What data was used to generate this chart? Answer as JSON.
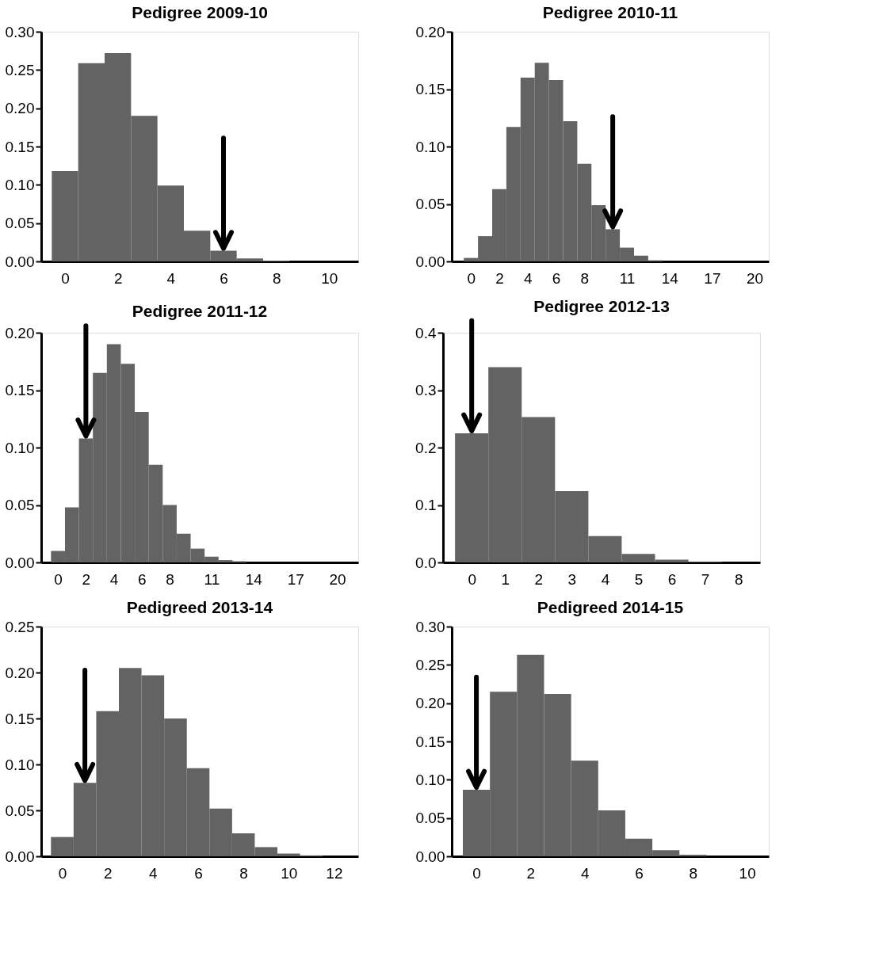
{
  "chart_data": [
    {
      "type": "histogram",
      "title": "Pedigree 2009-10",
      "bins": [
        -0.5,
        0.5,
        1.5,
        2.5,
        3.5,
        4.5,
        5.5,
        6.5,
        7.5,
        8.5
      ],
      "values": [
        0.118,
        0.259,
        0.272,
        0.19,
        0.099,
        0.04,
        0.014,
        0.004,
        0.001
      ],
      "color": "#636363",
      "xlim": [
        -0.9,
        11.1
      ],
      "xticks": [
        0,
        2,
        4,
        6,
        8,
        10
      ],
      "ylim": [
        0,
        0.3
      ],
      "yticks": [
        {
          "value": 0,
          "label": "0.00"
        },
        0.05,
        {
          "value": 0.1,
          "label": "0.10"
        },
        0.15,
        {
          "value": 0.2,
          "label": "0.20"
        },
        0.25,
        {
          "value": 0.3,
          "label": "0.30"
        }
      ],
      "grid": false,
      "ref_lines": [
        {
          "axis": "x",
          "value": 6
        }
      ]
    },
    {
      "type": "histogram",
      "title": "Pedigree 2010-11",
      "bins": [
        -0.5,
        0.5,
        1.5,
        2.5,
        3.5,
        4.5,
        5.5,
        6.5,
        7.5,
        8.5,
        9.5,
        10.5,
        11.5,
        12.5,
        13.5
      ],
      "values": [
        0.003,
        0.022,
        0.063,
        0.117,
        0.16,
        0.173,
        0.158,
        0.122,
        0.085,
        0.049,
        0.028,
        0.012,
        0.005,
        0.001
      ],
      "color": "#636363",
      "xlim": [
        -1.35,
        21
      ],
      "xticks": [
        0,
        2,
        4,
        6,
        8,
        11,
        14,
        17,
        20
      ],
      "ylim": [
        0,
        0.2
      ],
      "yticks": [
        {
          "value": 0,
          "label": "0.00"
        },
        0.05,
        {
          "value": 0.1,
          "label": "0.10"
        },
        0.15,
        {
          "value": 0.2,
          "label": "0.20"
        }
      ],
      "grid": false,
      "ref_lines": [
        {
          "axis": "x",
          "value": 10
        }
      ]
    },
    {
      "type": "histogram",
      "title": "Pedigree 2011-12",
      "bins": [
        -0.5,
        0.5,
        1.5,
        2.5,
        3.5,
        4.5,
        5.5,
        6.5,
        7.5,
        8.5,
        9.5,
        10.5,
        11.5,
        12.5,
        13.5
      ],
      "values": [
        0.01,
        0.048,
        0.108,
        0.165,
        0.19,
        0.173,
        0.131,
        0.085,
        0.05,
        0.025,
        0.012,
        0.005,
        0.002,
        0.001
      ],
      "color": "#636363",
      "xlim": [
        -1.2,
        21.5
      ],
      "xticks": [
        0,
        2,
        4,
        6,
        8,
        11,
        14,
        17,
        20
      ],
      "ylim": [
        0,
        0.2
      ],
      "yticks": [
        {
          "value": 0,
          "label": "0.00"
        },
        0.05,
        {
          "value": 0.1,
          "label": "0.10"
        },
        0.15,
        {
          "value": 0.2,
          "label": "0.20"
        }
      ],
      "grid": false,
      "ref_lines": [
        {
          "axis": "x",
          "value": 2
        }
      ]
    },
    {
      "type": "histogram",
      "title": "Pedigree 2012-13",
      "bins": [
        -0.5,
        0.5,
        1.5,
        2.5,
        3.5,
        4.5,
        5.5,
        6.5,
        7.5
      ],
      "values": [
        0.225,
        0.34,
        0.253,
        0.124,
        0.046,
        0.015,
        0.005,
        0.001
      ],
      "color": "#636363",
      "xlim": [
        -0.86,
        8.65
      ],
      "xticks": [
        0,
        1,
        2,
        3,
        4,
        5,
        6,
        7,
        8
      ],
      "ylim": [
        0,
        0.4
      ],
      "yticks": [
        {
          "value": 0,
          "label": "0.0"
        },
        0.1,
        0.2,
        0.3,
        0.4
      ],
      "grid": false,
      "ref_lines": [
        {
          "axis": "x",
          "value": 0
        }
      ]
    },
    {
      "type": "histogram",
      "title": "Pedigreed 2013-14",
      "bins": [
        -0.5,
        0.5,
        1.5,
        2.5,
        3.5,
        4.5,
        5.5,
        6.5,
        7.5,
        8.5,
        9.5,
        10.5,
        11.5
      ],
      "values": [
        0.021,
        0.08,
        0.158,
        0.205,
        0.197,
        0.15,
        0.096,
        0.052,
        0.025,
        0.01,
        0.003,
        0.001
      ],
      "color": "#636363",
      "xlim": [
        -0.93,
        13.07
      ],
      "xticks": [
        0,
        2,
        4,
        6,
        8,
        10,
        12
      ],
      "ylim": [
        0,
        0.25
      ],
      "yticks": [
        {
          "value": 0,
          "label": "0.00"
        },
        0.05,
        {
          "value": 0.1,
          "label": "0.10"
        },
        0.15,
        {
          "value": 0.2,
          "label": "0.20"
        },
        0.25
      ],
      "grid": false,
      "ref_lines": [
        {
          "axis": "x",
          "value": 1
        }
      ]
    },
    {
      "type": "histogram",
      "title": "Pedigreed 2014-15",
      "bins": [
        -0.5,
        0.5,
        1.5,
        2.5,
        3.5,
        4.5,
        5.5,
        6.5,
        7.5,
        8.5
      ],
      "values": [
        0.087,
        0.215,
        0.263,
        0.212,
        0.125,
        0.06,
        0.023,
        0.008,
        0.002
      ],
      "color": "#636363",
      "xlim": [
        -0.91,
        10.8
      ],
      "xticks": [
        0,
        2,
        4,
        6,
        8,
        10
      ],
      "ylim": [
        0,
        0.3
      ],
      "yticks": [
        {
          "value": 0,
          "label": "0.00"
        },
        0.05,
        {
          "value": 0.1,
          "label": "0.10"
        },
        0.15,
        {
          "value": 0.2,
          "label": "0.20"
        },
        0.25,
        {
          "value": 0.3,
          "label": "0.30"
        }
      ],
      "grid": false,
      "ref_lines": [
        {
          "axis": "x",
          "value": 0
        }
      ]
    }
  ]
}
